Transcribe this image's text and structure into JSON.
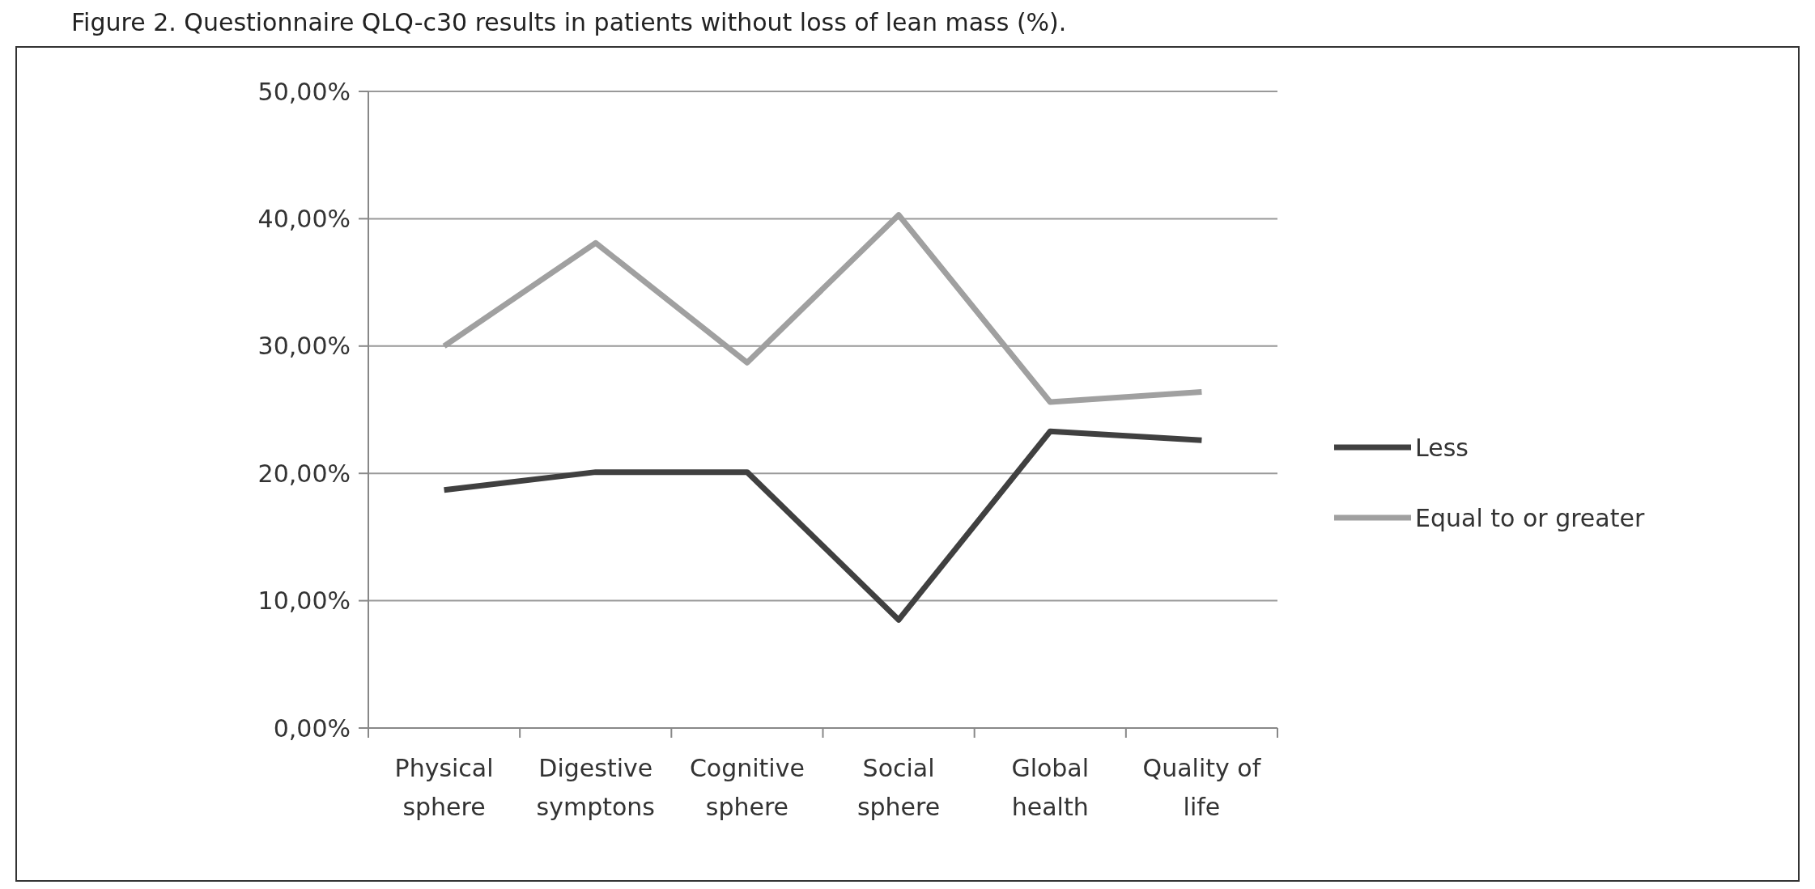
{
  "chart_data": {
    "type": "line",
    "title": "Figure 2. Questionnaire QLQ-c30 results in patients without loss of lean mass (%).",
    "categories": [
      "Physical\nsphere",
      "Digestive\nsymptons",
      "Cognitive\nsphere",
      "Social\nsphere",
      "Global\nhealth",
      "Quality of\nlife"
    ],
    "series": [
      {
        "name": "Less",
        "color": "#404040",
        "values": [
          18.7,
          20.1,
          20.1,
          8.5,
          23.3,
          22.6
        ]
      },
      {
        "name": "Equal to or greater",
        "color": "#a0a0a0",
        "values": [
          30.0,
          38.1,
          28.7,
          40.3,
          25.6,
          26.4
        ]
      }
    ],
    "ylim": [
      0,
      50
    ],
    "yticks": [
      {
        "value": 0,
        "label": "0,00%"
      },
      {
        "value": 10,
        "label": "10,00%"
      },
      {
        "value": 20,
        "label": "20,00%"
      },
      {
        "value": 30,
        "label": "30,00%"
      },
      {
        "value": 40,
        "label": "40,00%"
      },
      {
        "value": 50,
        "label": "50,00%"
      }
    ],
    "grid": "y",
    "legend": "right",
    "marker": "none",
    "line_style": "solid"
  }
}
